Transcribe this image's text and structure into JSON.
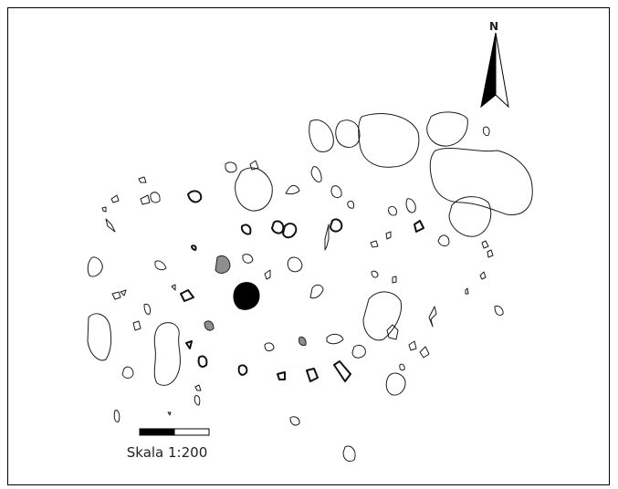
{
  "north_arrow": {
    "label": "N"
  },
  "scale_bar": {
    "label": "Skala 1:200"
  },
  "colors": {
    "outline": "#1a1a1a",
    "shaded_feature": "#8e8e8e",
    "filled_feature": "#000000",
    "frame": "#000000"
  }
}
